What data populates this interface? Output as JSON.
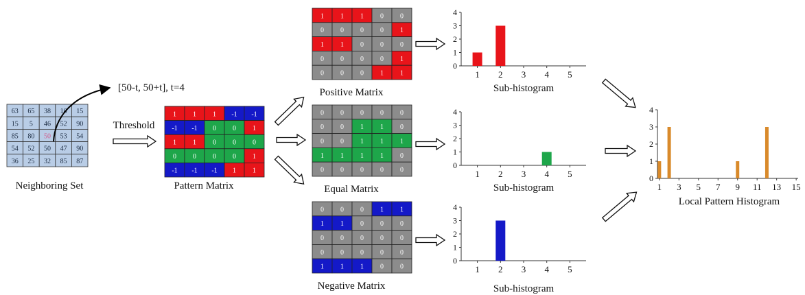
{
  "neighboring_set": {
    "caption": "Neighboring Set",
    "values": [
      [
        63,
        65,
        38,
        10,
        15
      ],
      [
        15,
        5,
        46,
        52,
        90
      ],
      [
        85,
        80,
        50,
        53,
        54
      ],
      [
        54,
        52,
        50,
        47,
        90
      ],
      [
        36,
        25,
        32,
        85,
        87
      ]
    ],
    "center_index": [
      2,
      2
    ]
  },
  "interval_label": "[50-t, 50+t], t=4",
  "threshold_label": "Threshold",
  "pattern_matrix": {
    "caption": "Pattern Matrix",
    "values": [
      [
        1,
        1,
        1,
        -1,
        -1
      ],
      [
        -1,
        -1,
        0,
        0,
        1
      ],
      [
        1,
        1,
        0,
        0,
        0
      ],
      [
        0,
        0,
        0,
        0,
        1
      ],
      [
        -1,
        -1,
        -1,
        1,
        1
      ]
    ]
  },
  "positive_matrix": {
    "caption": "Positive Matrix",
    "values": [
      [
        1,
        1,
        1,
        0,
        0
      ],
      [
        0,
        0,
        0,
        0,
        1
      ],
      [
        1,
        1,
        0,
        0,
        0
      ],
      [
        0,
        0,
        0,
        0,
        1
      ],
      [
        0,
        0,
        0,
        1,
        1
      ]
    ]
  },
  "equal_matrix": {
    "caption": "Equal Matrix",
    "values": [
      [
        0,
        0,
        0,
        0,
        0
      ],
      [
        0,
        0,
        1,
        1,
        0
      ],
      [
        0,
        0,
        1,
        1,
        1
      ],
      [
        1,
        1,
        1,
        1,
        0
      ],
      [
        0,
        0,
        0,
        0,
        0
      ]
    ]
  },
  "negative_matrix": {
    "caption": "Negative Matrix",
    "values": [
      [
        0,
        0,
        0,
        1,
        1
      ],
      [
        1,
        1,
        0,
        0,
        0
      ],
      [
        0,
        0,
        0,
        0,
        0
      ],
      [
        0,
        0,
        0,
        0,
        0
      ],
      [
        1,
        1,
        1,
        0,
        0
      ]
    ]
  },
  "colors": {
    "positive": "#e8141a",
    "equal": "#1ea64a",
    "negative": "#1419c8",
    "zero": "#8c8c8c",
    "neighbor_cell": "#b9cde6",
    "local_bar": "#d98a2b",
    "grid_line": "#222222"
  },
  "chart_data": [
    {
      "type": "bar",
      "title": "",
      "xlabel": "Sub-histogram",
      "ylabel": "",
      "x": [
        1,
        2,
        3,
        4,
        5
      ],
      "values": [
        1,
        3,
        0,
        0,
        0
      ],
      "xticks": [
        "1",
        "2",
        "3",
        "4",
        "5"
      ],
      "yticks": [
        "0",
        "1",
        "2",
        "3",
        "4"
      ],
      "ylim": [
        0,
        4
      ],
      "color": "#e8141a"
    },
    {
      "type": "bar",
      "title": "",
      "xlabel": "Sub-histogram",
      "ylabel": "",
      "x": [
        1,
        2,
        3,
        4,
        5
      ],
      "values": [
        0,
        0,
        0,
        1,
        0
      ],
      "xticks": [
        "1",
        "2",
        "3",
        "4",
        "5"
      ],
      "yticks": [
        "0",
        "1",
        "2",
        "3",
        "4"
      ],
      "ylim": [
        0,
        4
      ],
      "color": "#1ea64a"
    },
    {
      "type": "bar",
      "title": "",
      "xlabel": "Sub-histogram",
      "ylabel": "",
      "x": [
        1,
        2,
        3,
        4,
        5
      ],
      "values": [
        0,
        3,
        0,
        0,
        0
      ],
      "xticks": [
        "1",
        "2",
        "3",
        "4",
        "5"
      ],
      "yticks": [
        "0",
        "1",
        "2",
        "3",
        "4"
      ],
      "ylim": [
        0,
        4
      ],
      "color": "#1419c8"
    },
    {
      "type": "bar",
      "title": "",
      "xlabel": "Local Pattern Histogram",
      "ylabel": "",
      "x": [
        1,
        2,
        9,
        12
      ],
      "values": [
        1,
        3,
        1,
        3
      ],
      "xlim": [
        1,
        15
      ],
      "xticks": [
        "1",
        "3",
        "5",
        "7",
        "9",
        "11",
        "13",
        "15"
      ],
      "yticks": [
        "0",
        "1",
        "2",
        "3",
        "4"
      ],
      "ylim": [
        0,
        4
      ],
      "color": "#d98a2b"
    }
  ]
}
